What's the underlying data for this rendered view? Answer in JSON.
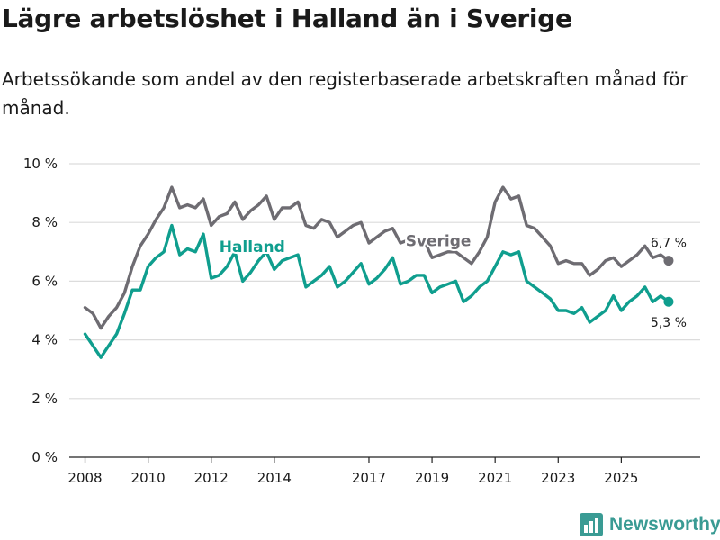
{
  "header": {
    "title": "Lägre arbetslöshet i Halland än i Sverige",
    "subtitle": "Arbetssökande som andel av den registerbaserade arbetskraften månad för månad."
  },
  "brand": {
    "name": "Newsworthy",
    "icon": "bar-chart-logo-icon"
  },
  "colors": {
    "halland": "#0f9e8e",
    "sverige": "#6e6c72",
    "grid": "#dcdcdc",
    "axis": "#222222",
    "text": "#1a1a1a"
  },
  "chart_data": {
    "type": "line",
    "title": "Lägre arbetslöshet i Halland än i Sverige",
    "xlabel": "",
    "ylabel": "",
    "x_start": 2008.0,
    "x_step": 0.25,
    "xlim": [
      2007.5,
      2027.5
    ],
    "ylim": [
      0,
      10
    ],
    "grid": true,
    "y_ticks": [
      0,
      2,
      4,
      6,
      8,
      10
    ],
    "y_tick_labels": [
      "0 %",
      "2 %",
      "4 %",
      "6 %",
      "8 %",
      "10 %"
    ],
    "x_ticks": [
      2008,
      2010,
      2012,
      2014,
      2017,
      2019,
      2021,
      2023,
      2025
    ],
    "x_tick_labels": [
      "2008",
      "2010",
      "2012",
      "2014",
      "2017",
      "2019",
      "2021",
      "2023",
      "2025"
    ],
    "series": [
      {
        "name": "Sverige",
        "label": "Sverige",
        "label_at": [
          2019.2,
          7.2
        ],
        "end_label": "6,7 %",
        "values": [
          5.1,
          4.9,
          4.4,
          4.8,
          5.1,
          5.6,
          6.5,
          7.2,
          7.6,
          8.1,
          8.5,
          9.2,
          8.5,
          8.6,
          8.5,
          8.8,
          7.9,
          8.2,
          8.3,
          8.7,
          8.1,
          8.4,
          8.6,
          8.9,
          8.1,
          8.5,
          8.5,
          8.7,
          7.9,
          7.8,
          8.1,
          8.0,
          7.5,
          7.7,
          7.9,
          8.0,
          7.3,
          7.5,
          7.7,
          7.8,
          7.3,
          7.4,
          7.3,
          7.4,
          6.8,
          6.9,
          7.0,
          7.0,
          6.8,
          6.6,
          7.0,
          7.5,
          8.7,
          9.2,
          8.8,
          8.9,
          7.9,
          7.8,
          7.5,
          7.2,
          6.6,
          6.7,
          6.6,
          6.6,
          6.2,
          6.4,
          6.7,
          6.8,
          6.5,
          6.7,
          6.9,
          7.2,
          6.8,
          6.9,
          6.7
        ]
      },
      {
        "name": "Halland",
        "label": "Halland",
        "label_at": [
          2013.3,
          7.0
        ],
        "end_label": "5,3 %",
        "values": [
          4.2,
          3.8,
          3.4,
          3.8,
          4.2,
          4.9,
          5.7,
          5.7,
          6.5,
          6.8,
          7.0,
          7.9,
          6.9,
          7.1,
          7.0,
          7.6,
          6.1,
          6.2,
          6.5,
          7.0,
          6.0,
          6.3,
          6.7,
          7.0,
          6.4,
          6.7,
          6.8,
          6.9,
          5.8,
          6.0,
          6.2,
          6.5,
          5.8,
          6.0,
          6.3,
          6.6,
          5.9,
          6.1,
          6.4,
          6.8,
          5.9,
          6.0,
          6.2,
          6.2,
          5.6,
          5.8,
          5.9,
          6.0,
          5.3,
          5.5,
          5.8,
          6.0,
          6.5,
          7.0,
          6.9,
          7.0,
          6.0,
          5.8,
          5.6,
          5.4,
          5.0,
          5.0,
          4.9,
          5.1,
          4.6,
          4.8,
          5.0,
          5.5,
          5.0,
          5.3,
          5.5,
          5.8,
          5.3,
          5.5,
          5.3
        ]
      }
    ]
  }
}
